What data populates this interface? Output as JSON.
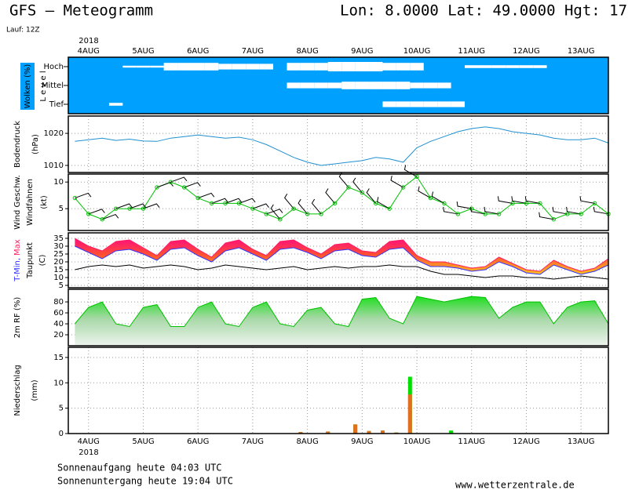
{
  "header": {
    "title": "GFS – Meteogramm",
    "location": "Lon: 8.0000 Lat: 49.0000 Hgt: 17",
    "run": "Lauf: 12Z",
    "year": "2018"
  },
  "footer": {
    "sunrise": "Sonnenaufgang heute 04:03 UTC",
    "sunset": "Sonnenuntergang heute 19:04 UTC",
    "source": "www.wetterzentrale.de"
  },
  "time": {
    "xlim": [
      -0.37,
      9.5
    ],
    "xticks": [
      {
        "value": 0,
        "label": "4AUG"
      },
      {
        "value": 1,
        "label": "5AUG"
      },
      {
        "value": 2,
        "label": "6AUG"
      },
      {
        "value": 3,
        "label": "7AUG"
      },
      {
        "value": 4,
        "label": "8AUG"
      },
      {
        "value": 5,
        "label": "9AUG"
      },
      {
        "value": 6,
        "label": "10AUG"
      },
      {
        "value": 7,
        "label": "11AUG"
      },
      {
        "value": 8,
        "label": "12AUG"
      },
      {
        "value": 9,
        "label": "13AUG"
      }
    ],
    "x": [
      -0.25,
      0,
      0.25,
      0.5,
      0.75,
      1,
      1.25,
      1.5,
      1.75,
      2,
      2.25,
      2.5,
      2.75,
      3,
      3.25,
      3.5,
      3.75,
      4,
      4.25,
      4.5,
      4.75,
      5,
      5.25,
      5.5,
      5.75,
      6,
      6.25,
      6.5,
      6.75,
      7,
      7.25,
      7.5,
      7.75,
      8,
      8.25,
      8.5,
      8.75,
      9,
      9.25,
      9.5
    ]
  },
  "chart_data": [
    {
      "type": "cloud_levels",
      "ylabel": "Wolken (%)",
      "sublabel": "L e v e l",
      "color": "#00a0ff",
      "series": [
        {
          "name": "Hoch",
          "values": [
            100,
            100,
            100,
            100,
            90,
            90,
            90,
            60,
            60,
            60,
            60,
            70,
            70,
            70,
            70,
            100,
            60,
            60,
            60,
            50,
            50,
            50,
            50,
            60,
            60,
            60,
            100,
            100,
            100,
            85,
            85,
            85,
            85,
            85,
            85,
            100,
            100,
            100,
            100,
            100
          ]
        },
        {
          "name": "Mittel",
          "values": [
            100,
            100,
            100,
            100,
            100,
            100,
            100,
            100,
            100,
            100,
            100,
            100,
            100,
            100,
            100,
            100,
            70,
            70,
            70,
            70,
            60,
            60,
            60,
            60,
            60,
            70,
            70,
            70,
            100,
            100,
            100,
            100,
            100,
            100,
            100,
            100,
            100,
            100,
            100,
            100
          ]
        },
        {
          "name": "Tief",
          "values": [
            100,
            100,
            100,
            85,
            100,
            100,
            100,
            100,
            100,
            100,
            100,
            100,
            100,
            100,
            100,
            100,
            100,
            100,
            100,
            100,
            100,
            100,
            100,
            70,
            70,
            70,
            70,
            70,
            70,
            100,
            100,
            100,
            100,
            100,
            100,
            100,
            100,
            100,
            100,
            100
          ]
        }
      ]
    },
    {
      "type": "line",
      "ylabel": "Bodendruck",
      "unit": "(hPa)",
      "ylim": [
        1007.8,
        1025.4
      ],
      "yticks": [
        1010,
        1020
      ],
      "grid": true,
      "series": [
        {
          "color": "#2090d0",
          "values": [
            1017.5,
            1018,
            1018.5,
            1017.8,
            1018.2,
            1017.6,
            1017.5,
            1018.5,
            1019,
            1019.5,
            1019,
            1018.5,
            1018.8,
            1018,
            1016.5,
            1014.5,
            1012.5,
            1011,
            1010,
            1010.5,
            1011,
            1011.5,
            1012.5,
            1012,
            1011,
            1015.5,
            1017.5,
            1019,
            1020.5,
            1021.5,
            1022,
            1021.5,
            1020.5,
            1020,
            1019.5,
            1018.5,
            1018,
            1018,
            1018.5,
            1017
          ]
        }
      ]
    },
    {
      "type": "wind",
      "unit": "(kt)",
      "ylim": [
        0.9,
        11.5
      ],
      "yticks": [
        5,
        10
      ],
      "grid": true,
      "series": [
        {
          "name": "Wind Geschw.",
          "color": "#00c000",
          "values": [
            7,
            4,
            3,
            5,
            5,
            5,
            9,
            10,
            9,
            7,
            6,
            6,
            6,
            5,
            4,
            3,
            5,
            4,
            4,
            6,
            9,
            8,
            6,
            5,
            9,
            11,
            7,
            6,
            4,
            5,
            4,
            4,
            6,
            6,
            6,
            3,
            4,
            4,
            6,
            4
          ]
        },
        {
          "name": "Windfahnen",
          "color": "#000000",
          "values": [
            70,
            70,
            70,
            70,
            70,
            70,
            70,
            70,
            70,
            70,
            70,
            70,
            70,
            70,
            70,
            320,
            320,
            320,
            320,
            320,
            320,
            320,
            320,
            300,
            300,
            300,
            300,
            300,
            280,
            280,
            280,
            280,
            280,
            280,
            280,
            280,
            280,
            280,
            280,
            280
          ]
        }
      ]
    },
    {
      "type": "temperature",
      "unit": "(C)",
      "ylim": [
        3.5,
        38.5
      ],
      "yticks": [
        5,
        10,
        15,
        20,
        25,
        30,
        35
      ],
      "grid": true,
      "series": [
        {
          "name": "T-Min,",
          "color": "#3030ff",
          "values": [
            30,
            26,
            22,
            27,
            28,
            25,
            21,
            28,
            29,
            24,
            20,
            27,
            29,
            25,
            21,
            28,
            29,
            26,
            22,
            27,
            28,
            24,
            23,
            28,
            29,
            21,
            17,
            17,
            16,
            14,
            15,
            20,
            17,
            13,
            12,
            18,
            15,
            12,
            14,
            18
          ]
        },
        {
          "name": "Max",
          "color": "#ff2060",
          "values": [
            35,
            30,
            27,
            33,
            34,
            29,
            24,
            33,
            34,
            28,
            23,
            32,
            34,
            28,
            24,
            33,
            34,
            29,
            25,
            31,
            32,
            27,
            26,
            33,
            34,
            24,
            20,
            20,
            18,
            16,
            17,
            23,
            19,
            15,
            14,
            21,
            17,
            14,
            16,
            22
          ]
        },
        {
          "name": "Taupunkt",
          "color": "#000000",
          "values": [
            15,
            17,
            18,
            17,
            18,
            16,
            17,
            18,
            17,
            15,
            16,
            18,
            17,
            16,
            15,
            16,
            17,
            15,
            16,
            17,
            16,
            17,
            17,
            18,
            17,
            17,
            14,
            12,
            12,
            11,
            10,
            11,
            11,
            10,
            10,
            9,
            10,
            11,
            10,
            9
          ]
        }
      ]
    },
    {
      "type": "area",
      "ylim": [
        0,
        103
      ],
      "yticks": [
        20,
        40,
        60,
        80
      ],
      "grid": true,
      "series": [
        {
          "name": "2m RF (%)",
          "color": "#00c000",
          "values": [
            40,
            70,
            80,
            40,
            35,
            70,
            75,
            35,
            35,
            70,
            80,
            40,
            35,
            70,
            80,
            40,
            35,
            65,
            70,
            40,
            35,
            85,
            88,
            50,
            40,
            90,
            85,
            80,
            85,
            90,
            88,
            50,
            70,
            80,
            80,
            40,
            70,
            80,
            82,
            40
          ]
        }
      ]
    },
    {
      "type": "bar",
      "ylabel": "Niederschlag",
      "unit": "(mm)",
      "ylim": [
        0,
        17
      ],
      "yticks": [
        0,
        5,
        10,
        15
      ],
      "grid": true,
      "series": [
        {
          "color": "#00dd00",
          "values": [
            0,
            0,
            0,
            0,
            0,
            0,
            0,
            0,
            0,
            0,
            0,
            0,
            0,
            0,
            0,
            0,
            0,
            0.3,
            0,
            0.4,
            0,
            1.8,
            0.5,
            0.6,
            0.2,
            11.2,
            0,
            0,
            0.6,
            0,
            0,
            0,
            0,
            0,
            0,
            0,
            0,
            0,
            0,
            0
          ]
        },
        {
          "color": "#e07020",
          "values": [
            0,
            0,
            0,
            0,
            0,
            0,
            0,
            0,
            0,
            0,
            0,
            0,
            0,
            0,
            0,
            0,
            0,
            0.3,
            0,
            0.4,
            0,
            1.8,
            0.5,
            0.6,
            0.2,
            7.7,
            0,
            0,
            0,
            0,
            0,
            0,
            0,
            0,
            0,
            0,
            0,
            0,
            0,
            0
          ]
        }
      ]
    }
  ]
}
